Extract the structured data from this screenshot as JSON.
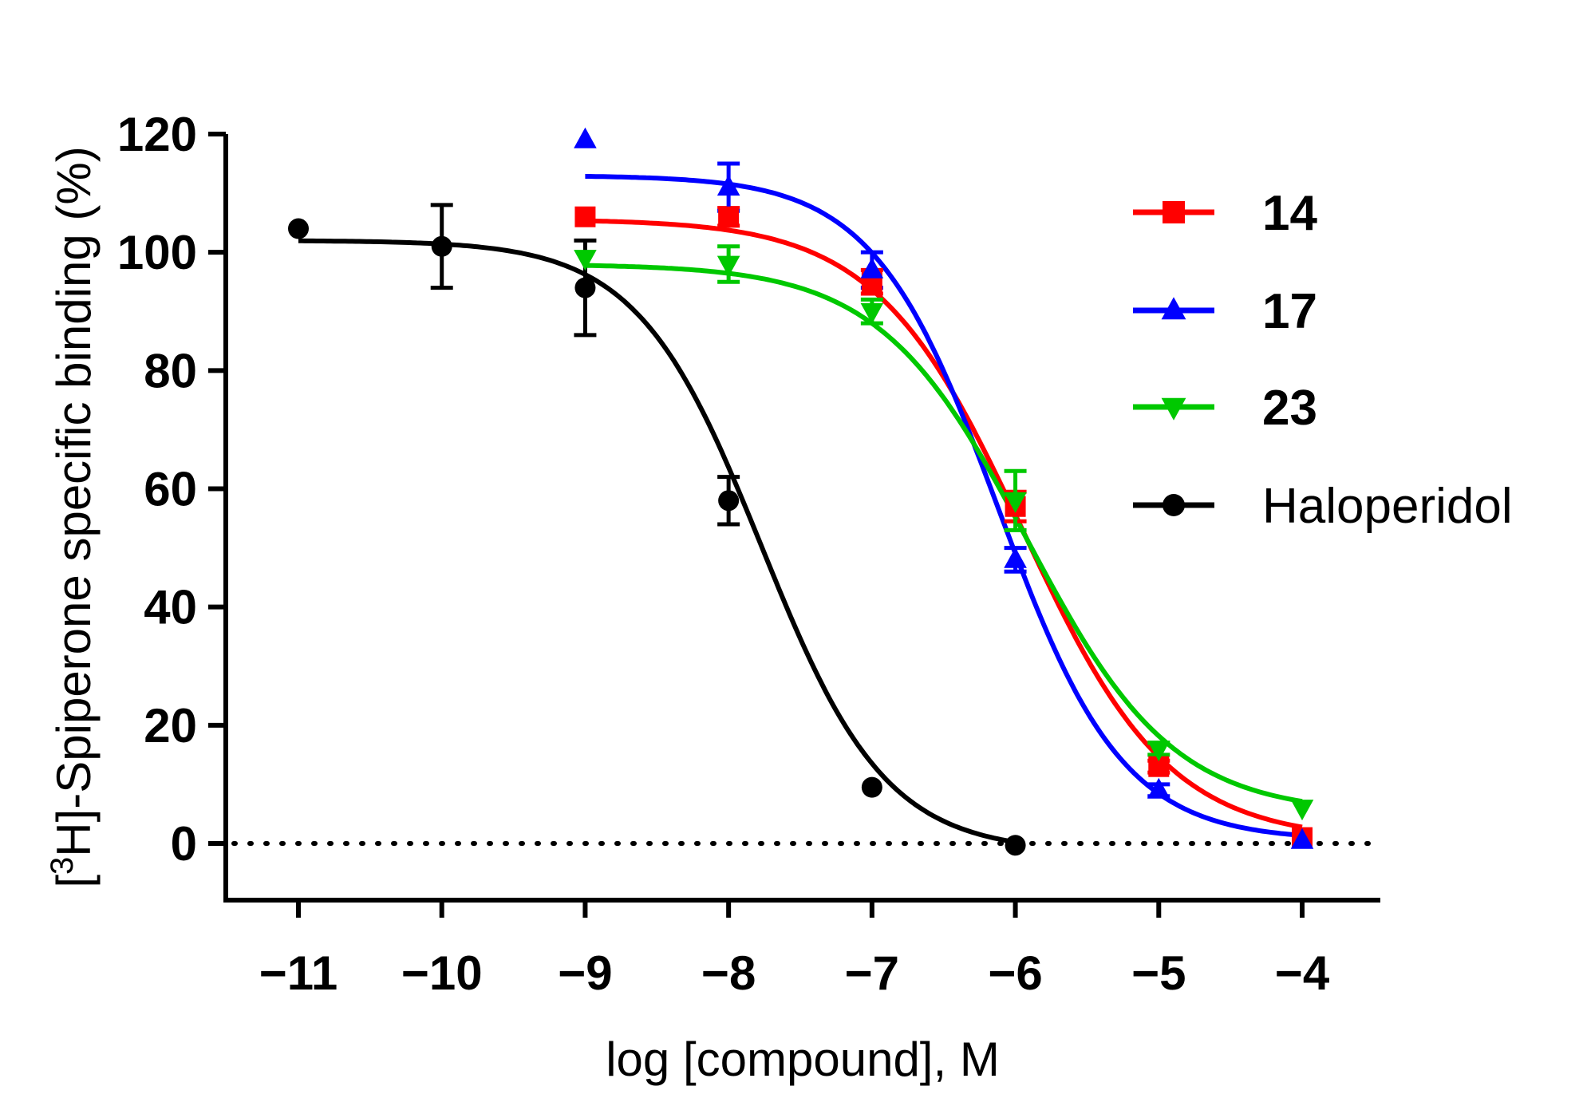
{
  "chart_data": {
    "type": "line",
    "title": "",
    "xlabel": "log [compound], M",
    "ylabel_prefix": "[",
    "ylabel_sup": "3",
    "ylabel_rest": "H]-Spiperone specific binding (%)",
    "xlim": [
      -11.5,
      -3.5
    ],
    "ylim": [
      -10,
      120
    ],
    "x_ticks": [
      -11,
      -10,
      -9,
      -8,
      -7,
      -6,
      -5,
      -4
    ],
    "x_tick_labels": [
      "−11",
      "−10",
      "−9",
      "−8",
      "−7",
      "−6",
      "−5",
      "−4"
    ],
    "y_ticks": [
      0,
      20,
      40,
      60,
      80,
      100,
      120
    ],
    "y_tick_labels": [
      "0",
      "20",
      "40",
      "60",
      "80",
      "100",
      "120"
    ],
    "reference_line": {
      "y": 0,
      "style": "dotted"
    },
    "legend_position": "right",
    "series": [
      {
        "name": "14",
        "color": "#ff0000",
        "marker": "square",
        "label_weight": "bold",
        "x": [
          -9,
          -8,
          -7,
          -6,
          -5,
          -4
        ],
        "y": [
          106,
          106,
          95,
          57,
          13,
          1
        ],
        "err": [
          0,
          1.5,
          2,
          2.5,
          1,
          0
        ],
        "fit": {
          "top": 105.6,
          "bottom": 0.5,
          "logIC50": -5.95,
          "hill": 0.85,
          "x_range": [
            -9,
            -4
          ]
        }
      },
      {
        "name": "17",
        "color": "#0000ff",
        "marker": "triangle-up",
        "label_weight": "bold",
        "x": [
          -9,
          -8,
          -7,
          -6,
          -5,
          -4
        ],
        "y": [
          119,
          111,
          97,
          48,
          9,
          0.5
        ],
        "err": [
          0,
          4,
          3,
          2,
          1,
          0
        ],
        "fit": {
          "top": 113,
          "bottom": 0.5,
          "logIC50": -6.12,
          "hill": 1.0,
          "x_range": [
            -9,
            -4
          ]
        }
      },
      {
        "name": "23",
        "color": "#00c800",
        "marker": "triangle-down",
        "label_weight": "bold",
        "x": [
          -9,
          -8,
          -7,
          -6,
          -5,
          -4
        ],
        "y": [
          99,
          98,
          90,
          58,
          16,
          6
        ],
        "err": [
          0,
          3,
          2,
          5,
          1,
          0
        ],
        "fit": {
          "top": 98,
          "bottom": 5,
          "logIC50": -5.92,
          "hill": 0.85,
          "x_range": [
            -9,
            -4
          ]
        }
      },
      {
        "name": "Haloperidol",
        "color": "#000000",
        "marker": "circle",
        "label_weight": "normal",
        "x": [
          -11,
          -10,
          -9,
          -8,
          -7,
          -6
        ],
        "y": [
          104,
          101,
          94,
          58,
          9.5,
          -0.3
        ],
        "err": [
          0,
          7,
          8,
          4,
          0,
          0
        ],
        "fit": {
          "top": 102,
          "bottom": -1.5,
          "logIC50": -7.77,
          "hill": 1.0,
          "x_range": [
            -11,
            -6
          ]
        }
      }
    ]
  }
}
